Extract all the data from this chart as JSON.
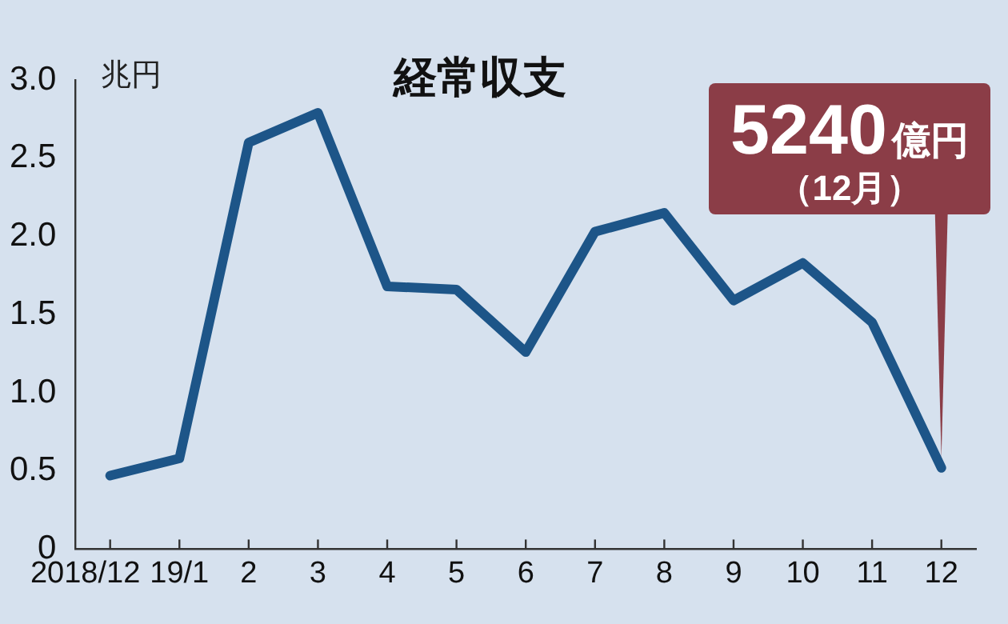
{
  "chart_data": {
    "type": "line",
    "title": "経常収支",
    "ylabel": "兆円",
    "categories": [
      "2018/12",
      "19/1",
      "2",
      "3",
      "4",
      "5",
      "6",
      "7",
      "8",
      "9",
      "10",
      "11",
      "12"
    ],
    "series": [
      {
        "color": "#1d5588",
        "values": [
          0.47,
          0.58,
          2.6,
          2.79,
          1.68,
          1.66,
          1.26,
          2.03,
          2.15,
          1.59,
          1.83,
          1.45,
          0.52
        ]
      }
    ],
    "ylim": [
      0,
      3
    ],
    "yticks": [
      0,
      0.5,
      {
        "value": 1,
        "label": "1.0"
      },
      1.5,
      {
        "value": 2,
        "label": "2.0"
      },
      2.5,
      {
        "value": 3,
        "label": "3.0"
      }
    ],
    "marker": "none",
    "annotations": [
      {
        "text": "5240億円（12月）",
        "x": "12",
        "y": 0.52
      }
    ]
  }
}
